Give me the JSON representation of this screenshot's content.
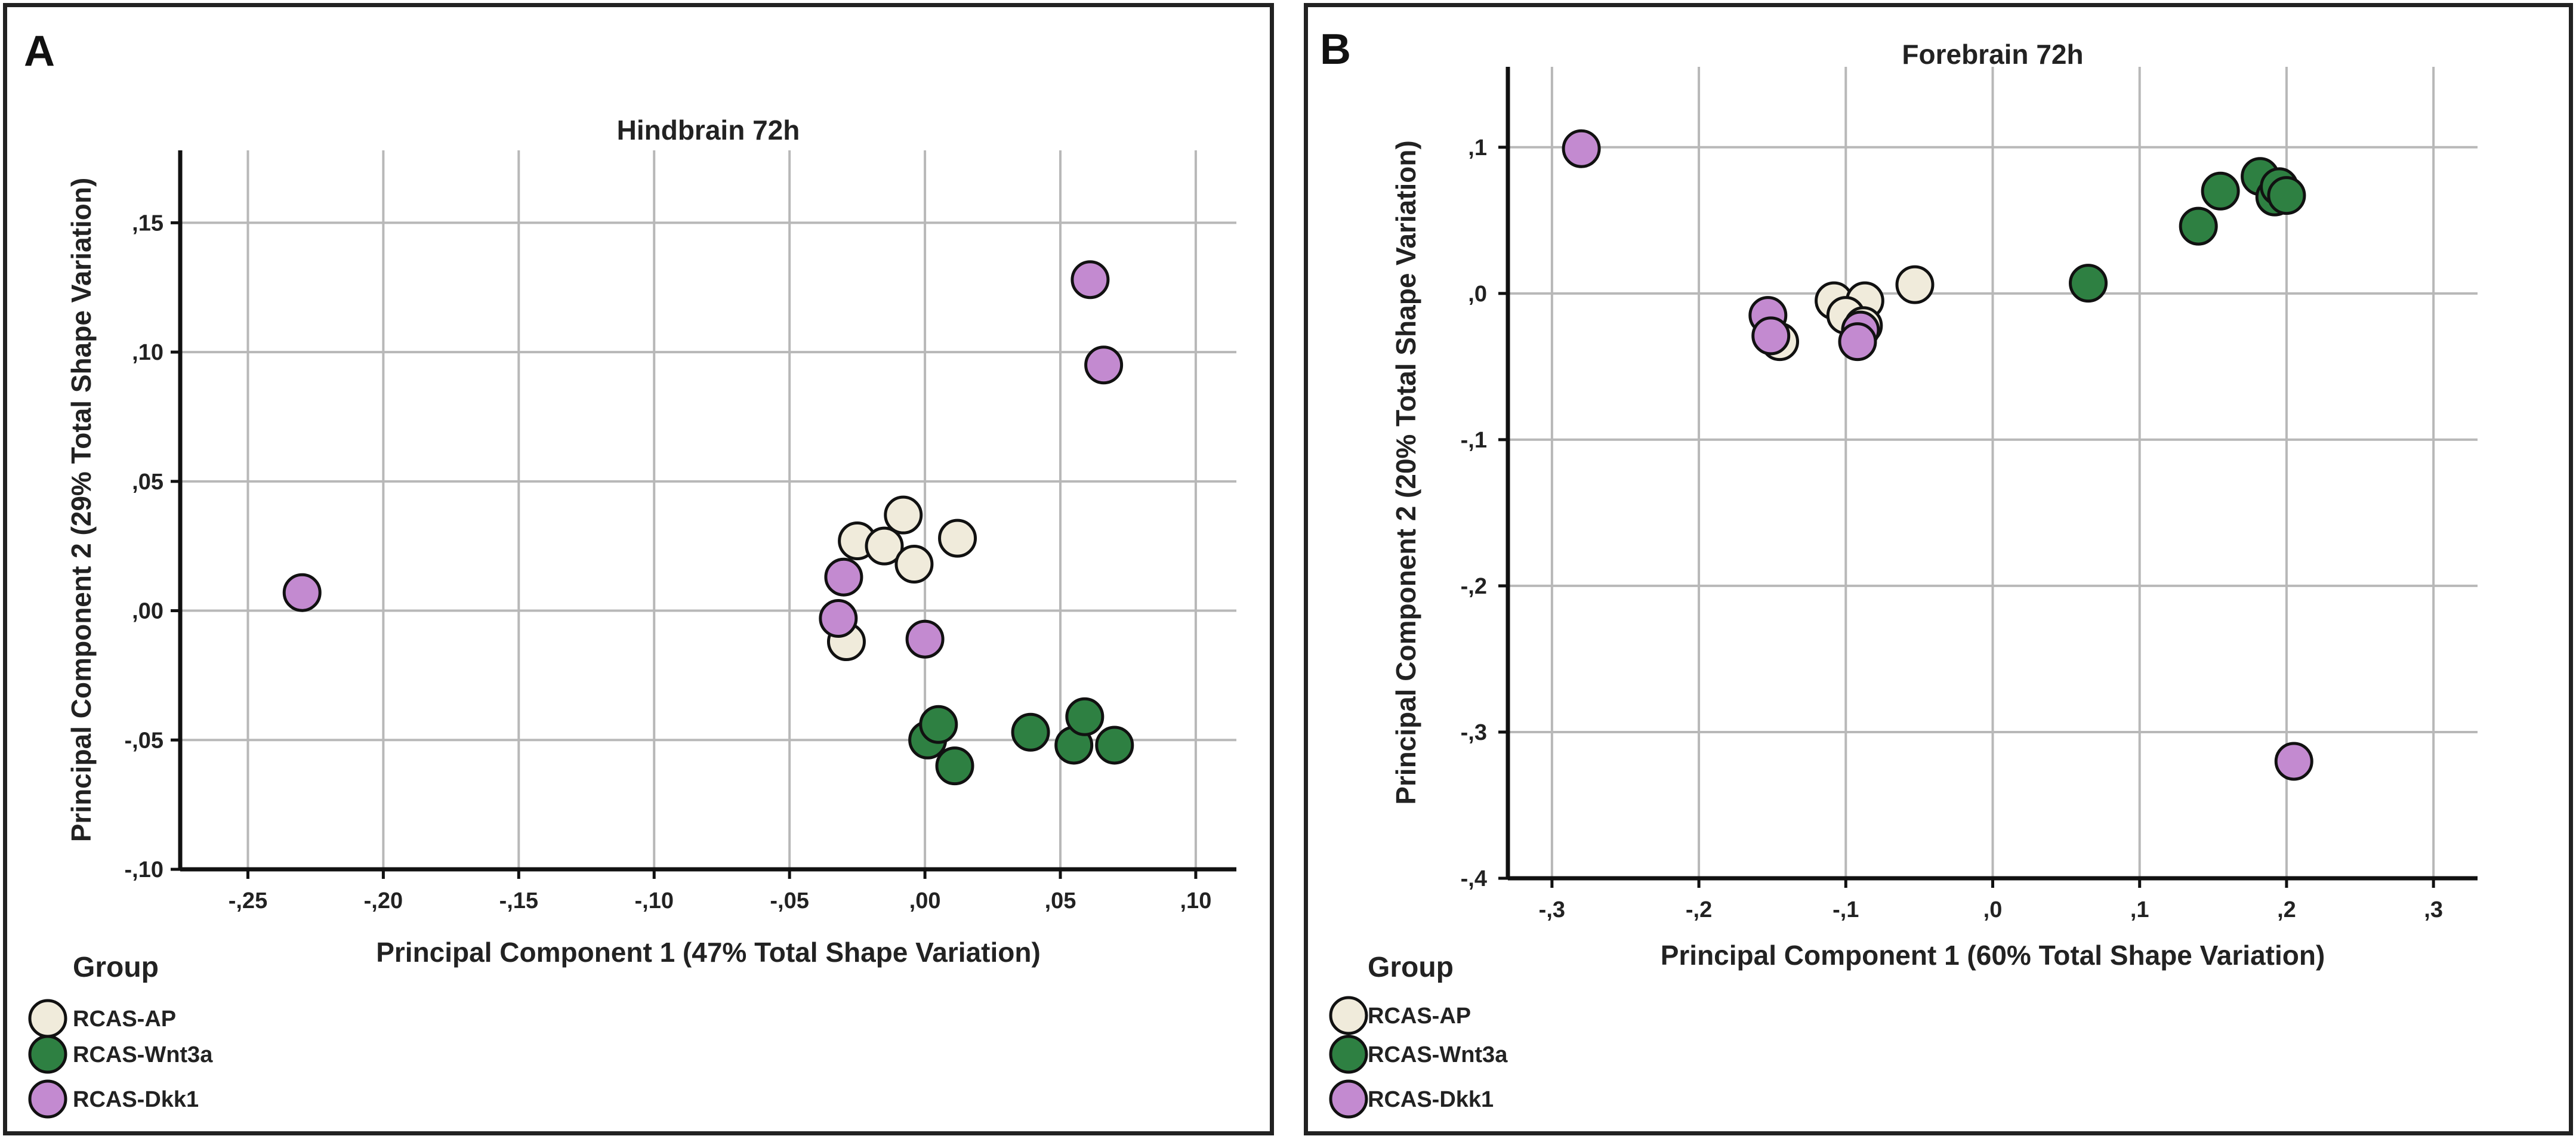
{
  "chart_data": [
    {
      "panel_letter": "A",
      "type": "scatter",
      "title": "Hindbrain 72h",
      "xlabel": "Principal Component 1 (47% Total Shape Variation)",
      "ylabel": "Principal Component 2 (29% Total Shape  Variation)",
      "xlim": [
        -0.275,
        0.115
      ],
      "ylim": [
        -0.1,
        0.178
      ],
      "xticks": [
        -0.25,
        -0.2,
        -0.15,
        -0.1,
        -0.05,
        0.0,
        0.05,
        0.1
      ],
      "xtick_labels": [
        "-,25",
        "-,20",
        "-,15",
        "-,10",
        "-,05",
        ",00",
        ",05",
        ",10"
      ],
      "yticks": [
        -0.1,
        -0.05,
        0.0,
        0.05,
        0.1,
        0.15
      ],
      "ytick_labels": [
        "-,10",
        "-,05",
        ",00",
        ",05",
        ",10",
        ",15"
      ],
      "grid": true,
      "legend_title": "Group",
      "series": [
        {
          "name": "RCAS-AP",
          "color": "#f0ebdb",
          "points": [
            [
              -0.025,
              0.027
            ],
            [
              -0.015,
              0.025
            ],
            [
              -0.008,
              0.037
            ],
            [
              -0.004,
              0.018
            ],
            [
              0.012,
              0.028
            ],
            [
              -0.029,
              -0.012
            ]
          ]
        },
        {
          "name": "RCAS-Wnt3a",
          "color": "#2e8042",
          "points": [
            [
              0.001,
              -0.05
            ],
            [
              0.005,
              -0.044
            ],
            [
              0.011,
              -0.06
            ],
            [
              0.039,
              -0.047
            ],
            [
              0.055,
              -0.052
            ],
            [
              0.059,
              -0.041
            ],
            [
              0.07,
              -0.052
            ]
          ]
        },
        {
          "name": "RCAS-Dkk1",
          "color": "#c38ad0",
          "points": [
            [
              -0.23,
              0.007
            ],
            [
              -0.03,
              0.013
            ],
            [
              -0.032,
              -0.003
            ],
            [
              0.0,
              -0.011
            ],
            [
              0.061,
              0.128
            ],
            [
              0.066,
              0.095
            ]
          ]
        }
      ]
    },
    {
      "panel_letter": "B",
      "type": "scatter",
      "title": "Forebrain 72h",
      "xlabel": "Principal Component 1 (60% Total Shape Variation)",
      "ylabel": "Principal Component 2 (20% Total Shape Variation)",
      "xlim": [
        -0.33,
        0.33
      ],
      "ylim": [
        -0.4,
        0.155
      ],
      "xticks": [
        -0.3,
        -0.2,
        -0.1,
        0.0,
        0.1,
        0.2,
        0.3
      ],
      "xtick_labels": [
        "-,3",
        "-,2",
        "-,1",
        ",0",
        ",1",
        ",2",
        ",3"
      ],
      "yticks": [
        -0.4,
        -0.3,
        -0.2,
        -0.1,
        0.0,
        0.1
      ],
      "ytick_labels": [
        "-,4",
        "-,3",
        "-,2",
        "-,1",
        ",0",
        ",1"
      ],
      "grid": true,
      "legend_title": "Group",
      "series": [
        {
          "name": "RCAS-AP",
          "color": "#f0ebdb",
          "points": [
            [
              -0.108,
              -0.005
            ],
            [
              -0.087,
              -0.005
            ],
            [
              -0.1,
              -0.015
            ],
            [
              -0.088,
              -0.022
            ],
            [
              -0.145,
              -0.033
            ],
            [
              -0.053,
              0.006
            ]
          ]
        },
        {
          "name": "RCAS-Wnt3a",
          "color": "#2e8042",
          "points": [
            [
              0.065,
              0.007
            ],
            [
              0.14,
              0.046
            ],
            [
              0.155,
              0.07
            ],
            [
              0.182,
              0.08
            ],
            [
              0.192,
              0.066
            ],
            [
              0.195,
              0.073
            ],
            [
              0.2,
              0.067
            ]
          ]
        },
        {
          "name": "RCAS-Dkk1",
          "color": "#c38ad0",
          "points": [
            [
              -0.28,
              0.099
            ],
            [
              -0.153,
              -0.015
            ],
            [
              -0.151,
              -0.029
            ],
            [
              -0.09,
              -0.025
            ],
            [
              -0.092,
              -0.033
            ],
            [
              0.205,
              -0.32
            ]
          ]
        }
      ]
    }
  ]
}
